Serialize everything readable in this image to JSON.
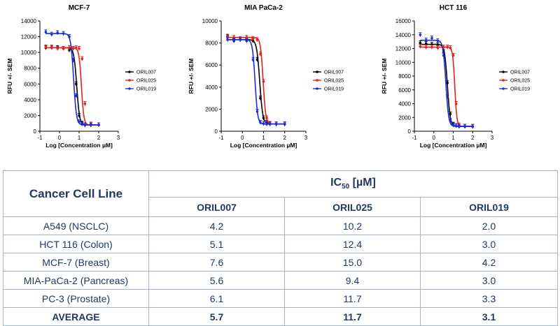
{
  "chart_data": [
    {
      "type": "line",
      "title": "MCF-7",
      "xlabel": "Log [Concentration µM]",
      "ylabel": "RFU +/- SEM",
      "xlim": [
        -1,
        3
      ],
      "ylim": [
        0,
        14000
      ],
      "xticks": [
        "-1",
        "0",
        "1",
        "2",
        "3"
      ],
      "yticks": [
        "0",
        "2000",
        "4000",
        "6000",
        "8000",
        "10000",
        "12000",
        "14000"
      ],
      "legend": "right",
      "x": [
        -0.7,
        -0.4,
        -0.1,
        0.2,
        0.5,
        0.7,
        0.85,
        1.0,
        1.15,
        1.3,
        1.6,
        2.0
      ],
      "series": [
        {
          "name": "ORIL007",
          "color": "#000000",
          "top": 10600,
          "bottom": 800,
          "x50": 0.88,
          "slope": 6,
          "values": [
            10600,
            10650,
            10600,
            10500,
            10300,
            9000,
            6000,
            2000,
            1000,
            800,
            800,
            800
          ]
        },
        {
          "name": "ORIL025",
          "color": "#e8201c",
          "top": 10600,
          "bottom": 800,
          "x50": 1.12,
          "slope": 7,
          "values": [
            10700,
            10600,
            10500,
            10500,
            10600,
            10500,
            10600,
            10500,
            9200,
            3500,
            900,
            800
          ]
        },
        {
          "name": "ORIL019",
          "color": "#1a2bd8",
          "top": 12400,
          "bottom": 800,
          "x50": 0.72,
          "slope": 6,
          "values": [
            12600,
            12300,
            12500,
            12400,
            12000,
            9000,
            4500,
            1200,
            900,
            800,
            800,
            800
          ]
        }
      ]
    },
    {
      "type": "line",
      "title": "MIA PaCa-2",
      "xlabel": "Log [Concentration µM]",
      "ylabel": "RFU +/- SEM",
      "xlim": [
        -1,
        3
      ],
      "ylim": [
        0,
        10000
      ],
      "xticks": [
        "-1",
        "0",
        "1",
        "2",
        "3"
      ],
      "yticks": [
        "0",
        "2000",
        "4000",
        "6000",
        "8000",
        "10000"
      ],
      "legend": "right",
      "x": [
        -0.7,
        -0.4,
        -0.1,
        0.2,
        0.5,
        0.7,
        0.85,
        1.0,
        1.15,
        1.3,
        1.6,
        2.0
      ],
      "series": [
        {
          "name": "ORIL007",
          "color": "#000000",
          "top": 8300,
          "bottom": 650,
          "x50": 0.82,
          "slope": 6,
          "values": [
            8600,
            8200,
            8300,
            8250,
            8200,
            6500,
            3000,
            1200,
            800,
            700,
            650,
            650
          ]
        },
        {
          "name": "ORIL025",
          "color": "#e8201c",
          "top": 8500,
          "bottom": 650,
          "x50": 0.98,
          "slope": 7,
          "values": [
            8500,
            8500,
            8400,
            8500,
            8400,
            8300,
            7000,
            4500,
            1200,
            700,
            650,
            650
          ]
        },
        {
          "name": "ORIL019",
          "color": "#1a2bd8",
          "top": 8300,
          "bottom": 650,
          "x50": 0.6,
          "slope": 7,
          "values": [
            8300,
            8250,
            8300,
            8200,
            6500,
            1800,
            800,
            700,
            650,
            650,
            650,
            650
          ]
        }
      ]
    },
    {
      "type": "line",
      "title": "HCT 116",
      "xlabel": "Log [Concentration µM]",
      "ylabel": "RFU +/- SEM",
      "xlim": [
        -1,
        3
      ],
      "ylim": [
        0,
        16000
      ],
      "xticks": [
        "-1",
        "0",
        "1",
        "2",
        "3"
      ],
      "yticks": [
        "0",
        "2000",
        "4000",
        "6000",
        "8000",
        "10000",
        "12000",
        "14000",
        "16000"
      ],
      "legend": "right",
      "x": [
        -0.7,
        -0.4,
        -0.1,
        0.2,
        0.5,
        0.7,
        0.85,
        1.0,
        1.15,
        1.3,
        1.6,
        2.0
      ],
      "series": [
        {
          "name": "ORIL007",
          "color": "#000000",
          "top": 12600,
          "bottom": 700,
          "x50": 0.7,
          "slope": 6,
          "values": [
            12800,
            12700,
            12600,
            12500,
            11500,
            7000,
            2500,
            1000,
            800,
            700,
            700,
            700
          ]
        },
        {
          "name": "ORIL025",
          "color": "#e8201c",
          "top": 12200,
          "bottom": 700,
          "x50": 1.08,
          "slope": 8,
          "values": [
            12300,
            12200,
            12200,
            12100,
            12200,
            12200,
            12100,
            11000,
            4000,
            900,
            700,
            700
          ]
        },
        {
          "name": "ORIL019",
          "color": "#1a2bd8",
          "top": 13200,
          "bottom": 700,
          "x50": 0.62,
          "slope": 6,
          "values": [
            14000,
            13200,
            13500,
            13100,
            11000,
            5000,
            1500,
            900,
            800,
            700,
            700,
            700
          ]
        }
      ]
    }
  ],
  "table": {
    "row_header": "Cancer Cell Line",
    "group_header": "IC",
    "group_header_sub": "50",
    "group_header_unit": " [µM]",
    "columns": [
      "ORIL007",
      "ORIL025",
      "ORIL019"
    ],
    "rows": [
      {
        "line": "A549 (NSCLC)",
        "values": [
          "4.2",
          "10.2",
          "2.0"
        ]
      },
      {
        "line": "HCT 116 (Colon)",
        "values": [
          "5.1",
          "12.4",
          "3.0"
        ]
      },
      {
        "line": "MCF-7 (Breast)",
        "values": [
          "7.6",
          "15.0",
          "4.2"
        ]
      },
      {
        "line": "MIA-PaCa-2 (Pancreas)",
        "values": [
          "5.6",
          "9.4",
          "3.0"
        ]
      },
      {
        "line": "PC-3 (Prostate)",
        "values": [
          "6.1",
          "11.7",
          "3.3"
        ]
      }
    ],
    "average": {
      "line": "AVERAGE",
      "values": [
        "5.7",
        "11.7",
        "3.1"
      ]
    }
  }
}
